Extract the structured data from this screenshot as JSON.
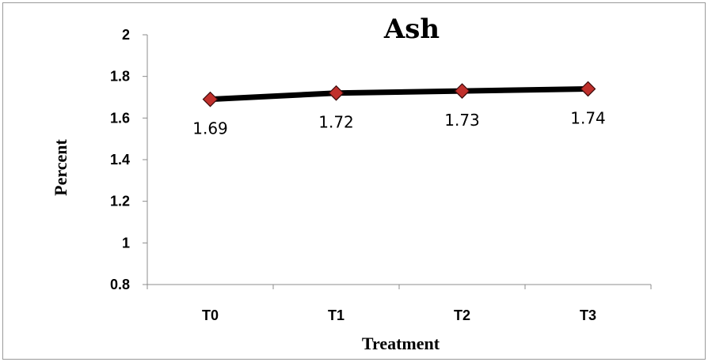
{
  "chart_data": {
    "type": "line",
    "title": "Ash",
    "xlabel": "Treatment",
    "ylabel": "Percent",
    "categories": [
      "T0",
      "T1",
      "T2",
      "T3"
    ],
    "ylim": [
      0.8,
      2
    ],
    "yticks": [
      "0.8",
      "1",
      "1.2",
      "1.4",
      "1.6",
      "1.8",
      "2"
    ],
    "series": [
      {
        "values": [
          1.69,
          1.72,
          1.73,
          1.74
        ],
        "labels": [
          "1.69",
          "1.72",
          "1.73",
          "1.74"
        ]
      }
    ],
    "grid": false,
    "legend": false,
    "colors": {
      "line": "#000000",
      "marker": "#c0302c",
      "marker_edge": "#3a0a0a"
    }
  }
}
